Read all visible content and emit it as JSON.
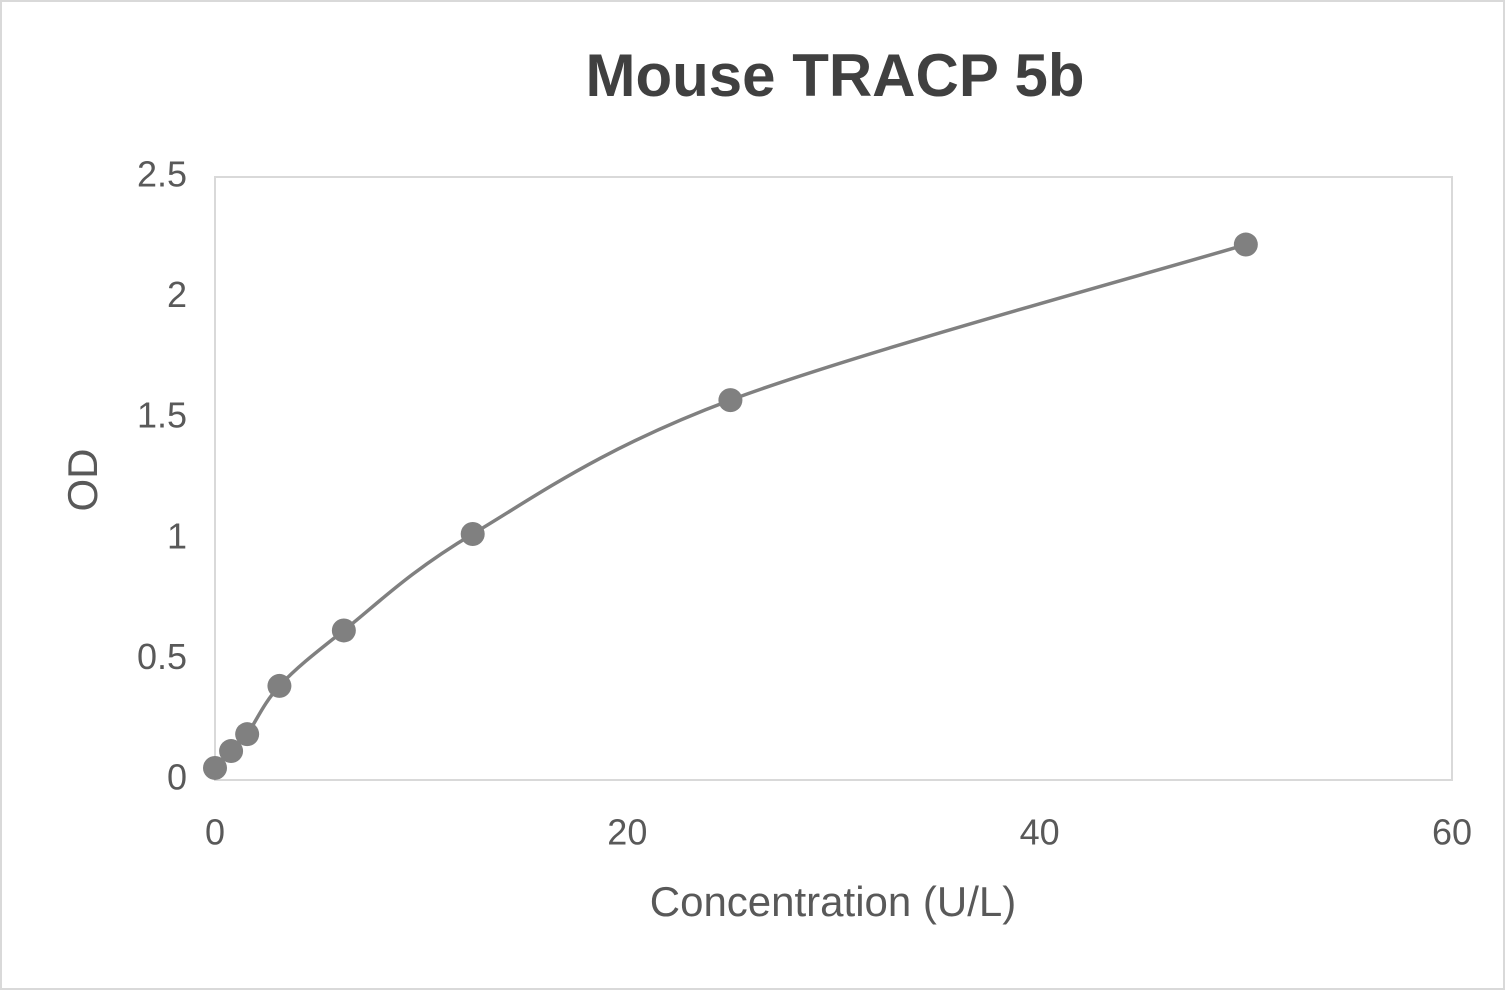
{
  "chart_data": {
    "type": "scatter",
    "title": "Mouse TRACP 5b",
    "x_label": "Concentration (U/L)",
    "y_label": "OD",
    "series": [
      {
        "name": "OD",
        "color": "#808080",
        "x": [
          0,
          0.78,
          1.56,
          3.125,
          6.25,
          12.5,
          25,
          50
        ],
        "values": [
          0.05,
          0.12,
          0.19,
          0.39,
          0.62,
          1.02,
          1.575,
          2.22
        ]
      }
    ],
    "xlim": [
      0,
      60
    ],
    "xticks": [
      0,
      20,
      40,
      60
    ],
    "ylim": [
      0,
      2.5
    ],
    "yticks": [
      0,
      0.5,
      1,
      1.5,
      2,
      2.5
    ],
    "smooth": true
  }
}
